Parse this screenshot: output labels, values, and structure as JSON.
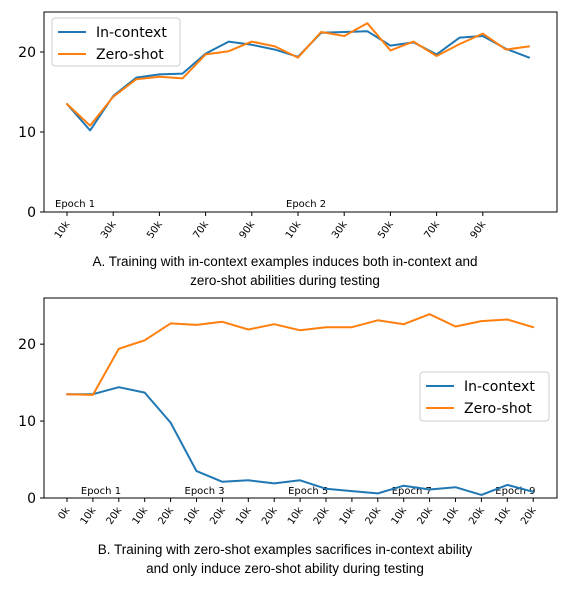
{
  "chart_data": [
    {
      "type": "line",
      "x": [
        "10k",
        "20k",
        "30k",
        "40k",
        "50k",
        "60k",
        "70k",
        "80k",
        "90k",
        "100k",
        "10k",
        "20k",
        "30k",
        "40k",
        "50k",
        "60k",
        "70k",
        "80k",
        "90k",
        "100k",
        "110k"
      ],
      "xtick_labels": [
        "10k",
        "30k",
        "50k",
        "70k",
        "90k",
        "10k",
        "30k",
        "50k",
        "70k",
        "90k"
      ],
      "series": [
        {
          "name": "In-context",
          "color": "#1f77b4",
          "values": [
            13.5,
            10.2,
            14.5,
            16.8,
            17.2,
            17.3,
            19.8,
            21.3,
            20.9,
            20.3,
            19.4,
            22.4,
            22.5,
            22.6,
            20.8,
            21.2,
            19.7,
            21.8,
            22.0,
            20.4,
            19.3
          ]
        },
        {
          "name": "Zero-shot",
          "color": "#ff7f0e",
          "values": [
            13.5,
            10.8,
            14.4,
            16.6,
            16.9,
            16.7,
            19.7,
            20.1,
            21.3,
            20.7,
            19.3,
            22.5,
            22.0,
            23.6,
            20.2,
            21.3,
            19.5,
            21.0,
            22.3,
            20.3,
            20.7
          ]
        }
      ],
      "epochs": [
        {
          "label": "Epoch 1",
          "at": 0
        },
        {
          "label": "Epoch 2",
          "at": 10
        }
      ],
      "yticks": [
        0,
        10,
        20
      ],
      "ylim": [
        0,
        25
      ],
      "legend": "top-left",
      "caption": [
        "A. Training with in-context examples induces both in-context and",
        "zero-shot abilities during testing"
      ]
    },
    {
      "type": "line",
      "x": [
        "0k",
        "10k",
        "20k",
        "10k",
        "20k",
        "10k",
        "20k",
        "10k",
        "20k",
        "10k",
        "20k",
        "10k",
        "20k",
        "10k",
        "20k",
        "10k",
        "20k",
        "10k",
        "20k"
      ],
      "xtick_labels": [
        "0k",
        "10k",
        "20k",
        "10k",
        "20k",
        "10k",
        "20k",
        "10k",
        "20k",
        "10k",
        "20k",
        "10k",
        "20k",
        "10k",
        "20k",
        "10k",
        "20k",
        "10k",
        "20k"
      ],
      "series": [
        {
          "name": "In-context",
          "color": "#1f77b4",
          "values": [
            13.5,
            13.5,
            14.4,
            13.7,
            9.8,
            3.5,
            2.1,
            2.3,
            1.9,
            2.3,
            1.2,
            0.9,
            0.6,
            1.6,
            1.1,
            1.4,
            0.4,
            1.7,
            0.8
          ]
        },
        {
          "name": "Zero-shot",
          "color": "#ff7f0e",
          "values": [
            13.5,
            13.4,
            19.4,
            20.5,
            22.7,
            22.5,
            22.9,
            21.9,
            22.6,
            21.8,
            22.2,
            22.2,
            23.1,
            22.6,
            23.9,
            22.3,
            23.0,
            23.2,
            22.2
          ]
        }
      ],
      "epochs": [
        {
          "label": "Epoch 1",
          "at": 1
        },
        {
          "label": "Epoch 3",
          "at": 5
        },
        {
          "label": "Epoch 5",
          "at": 9
        },
        {
          "label": "Epoch 7",
          "at": 13
        },
        {
          "label": "Epoch 9",
          "at": 17
        }
      ],
      "yticks": [
        0,
        10,
        20
      ],
      "ylim": [
        0,
        26
      ],
      "legend": "center-right",
      "caption": [
        "B. Training with zero-shot examples sacrifices in-context ability",
        "and only induce zero-shot ability during testing"
      ]
    }
  ]
}
